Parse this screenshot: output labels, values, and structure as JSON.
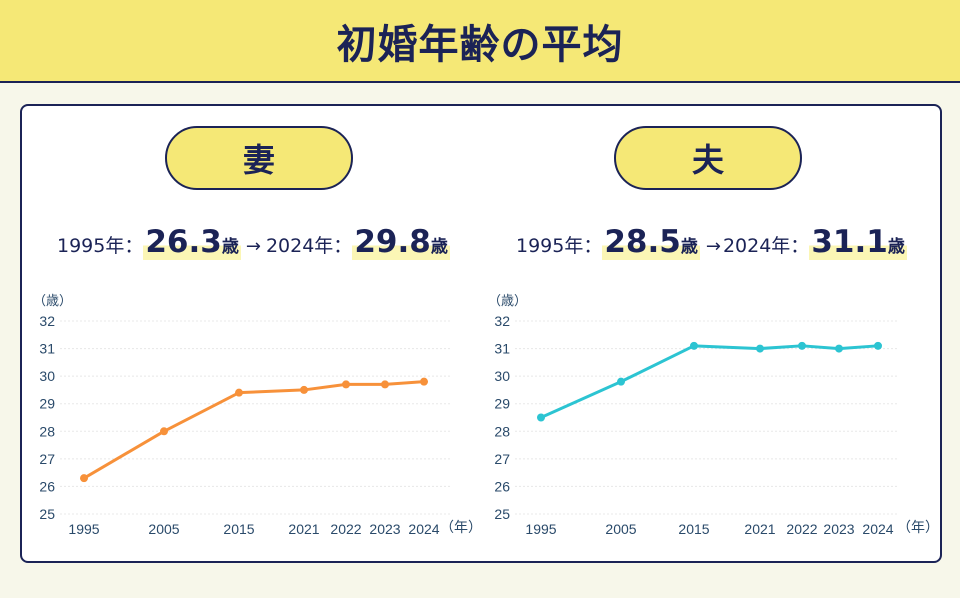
{
  "header": {
    "title": "初婚年齢の平均"
  },
  "wife": {
    "label": "妻",
    "from_year": "1995年：",
    "from_value": "26.3",
    "unit": "歳",
    "arrow": "→",
    "to_year": "2024年：",
    "to_value": "29.8"
  },
  "husband": {
    "label": "夫",
    "from_year": "1995年：",
    "from_value": "28.5",
    "unit": "歳",
    "arrow": "→",
    "to_year": "2024年：",
    "to_value": "31.1"
  },
  "colors": {
    "wife_line": "#f7913a",
    "husband_line": "#2cc4d2",
    "navy": "#1b2356",
    "yellow": "#f5e876"
  },
  "chart_data": [
    {
      "type": "line",
      "title": "妻",
      "categories": [
        "1995",
        "2005",
        "2015",
        "2021",
        "2022",
        "2023",
        "2024"
      ],
      "series": [
        {
          "name": "妻",
          "values": [
            26.3,
            28.0,
            29.4,
            29.5,
            29.7,
            29.7,
            29.8
          ],
          "color": "#f7913a"
        }
      ],
      "xlabel": "（年）",
      "ylabel": "（歳）",
      "yticks": [
        25,
        26,
        27,
        28,
        29,
        30,
        31,
        32
      ],
      "ylim": [
        25,
        32
      ],
      "grid": true
    },
    {
      "type": "line",
      "title": "夫",
      "categories": [
        "1995",
        "2005",
        "2015",
        "2021",
        "2022",
        "2023",
        "2024"
      ],
      "series": [
        {
          "name": "夫",
          "values": [
            28.5,
            29.8,
            31.1,
            31.0,
            31.1,
            31.0,
            31.1
          ],
          "color": "#2cc4d2"
        }
      ],
      "xlabel": "（年）",
      "ylabel": "（歳）",
      "yticks": [
        25,
        26,
        27,
        28,
        29,
        30,
        31,
        32
      ],
      "ylim": [
        25,
        32
      ],
      "grid": true
    }
  ]
}
